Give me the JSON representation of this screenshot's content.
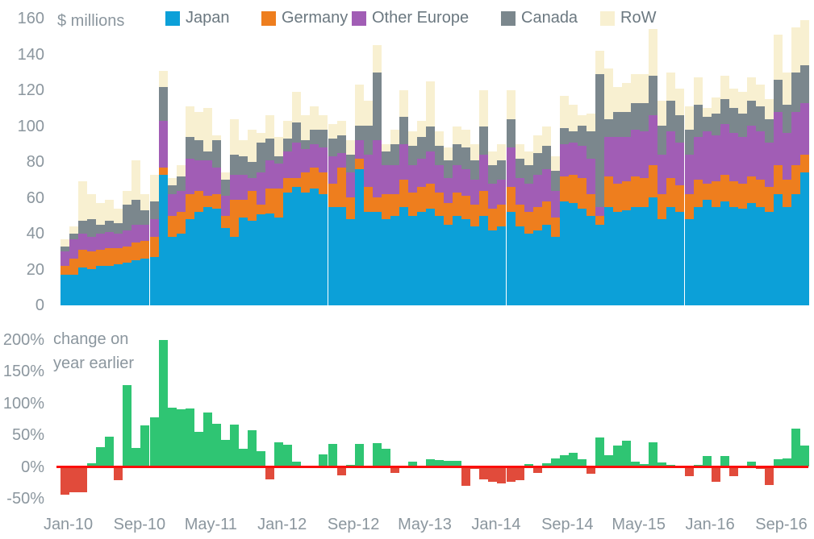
{
  "colors": {
    "japan": "#0ca0d8",
    "germany": "#ee7e1e",
    "other_europe": "#a15db5",
    "canada": "#7b878d",
    "row": "#f8f0d1",
    "positive": "#2fc573",
    "negative": "#e14b3b",
    "zero_line": "#fb0f0c",
    "axis_text": "#8b969e"
  },
  "legend": {
    "items": [
      {
        "label": "Japan",
        "color": "#0ca0d8"
      },
      {
        "label": "Germany",
        "color": "#ee7e1e"
      },
      {
        "label": "Other Europe",
        "color": "#a15db5"
      },
      {
        "label": "Canada",
        "color": "#7b878d"
      },
      {
        "label": "RoW",
        "color": "#f8f0d1"
      }
    ]
  },
  "chart_data": [
    {
      "type": "bar",
      "stacked": true,
      "title": "$ millions",
      "ylabel": "",
      "ylim": [
        0,
        160
      ],
      "yticks": [
        160,
        140,
        120,
        100,
        80,
        60,
        40,
        20,
        0
      ],
      "grid": false,
      "legend_position": "top",
      "categories": [
        "Jan-10",
        "Feb-10",
        "Mar-10",
        "Apr-10",
        "May-10",
        "Jun-10",
        "Jul-10",
        "Aug-10",
        "Sep-10",
        "Oct-10",
        "Nov-10",
        "Dec-10",
        "Jan-11",
        "Feb-11",
        "Mar-11",
        "Apr-11",
        "May-11",
        "Jun-11",
        "Jul-11",
        "Aug-11",
        "Sep-11",
        "Oct-11",
        "Nov-11",
        "Dec-11",
        "Jan-12",
        "Feb-12",
        "Mar-12",
        "Apr-12",
        "May-12",
        "Jun-12",
        "Jul-12",
        "Aug-12",
        "Sep-12",
        "Oct-12",
        "Nov-12",
        "Dec-12",
        "Jan-13",
        "Feb-13",
        "Mar-13",
        "Apr-13",
        "May-13",
        "Jun-13",
        "Jul-13",
        "Aug-13",
        "Sep-13",
        "Oct-13",
        "Nov-13",
        "Dec-13",
        "Jan-14",
        "Feb-14",
        "Mar-14",
        "Apr-14",
        "May-14",
        "Jun-14",
        "Jul-14",
        "Aug-14",
        "Sep-14",
        "Oct-14",
        "Nov-14",
        "Dec-14",
        "Jan-15",
        "Feb-15",
        "Mar-15",
        "Apr-15",
        "May-15",
        "Jun-15",
        "Jul-15",
        "Aug-15",
        "Sep-15",
        "Oct-15",
        "Nov-15",
        "Dec-15",
        "Jan-16",
        "Feb-16",
        "Mar-16",
        "Apr-16",
        "May-16",
        "Jun-16",
        "Jul-16",
        "Aug-16",
        "Sep-16",
        "Oct-16",
        "Nov-16",
        "Dec-16"
      ],
      "xtick_labels": [
        "Jan-10",
        "Sep-10",
        "May-11",
        "Jan-12",
        "Sep-12",
        "May-13",
        "Jan-14",
        "Sep-14",
        "May-15",
        "Jan-16",
        "Sep-16"
      ],
      "xtick_indices": [
        0,
        8,
        16,
        24,
        32,
        40,
        48,
        56,
        64,
        72,
        80
      ],
      "series": [
        {
          "name": "Japan",
          "values": [
            17,
            17,
            21,
            20,
            22,
            22,
            23,
            24,
            25,
            26,
            27,
            73,
            38,
            40,
            48,
            52,
            55,
            54,
            43,
            38,
            49,
            47,
            51,
            51,
            49,
            63,
            66,
            63,
            65,
            62,
            55,
            55,
            48,
            76,
            52,
            52,
            48,
            50,
            55,
            50,
            52,
            54,
            50,
            45,
            50,
            48,
            44,
            50,
            42,
            44,
            52,
            44,
            40,
            42,
            45,
            38,
            58,
            57,
            54,
            50,
            45,
            55,
            52,
            53,
            55,
            55,
            60,
            48,
            55,
            52,
            48,
            55,
            59,
            55,
            58,
            55,
            54,
            57,
            55,
            52,
            62,
            55,
            62,
            74
          ]
        },
        {
          "name": "Germany",
          "values": [
            5,
            9,
            10,
            10,
            9,
            10,
            9,
            9,
            10,
            10,
            11,
            4,
            12,
            12,
            14,
            12,
            6,
            8,
            7,
            21,
            10,
            17,
            5,
            14,
            16,
            8,
            5,
            11,
            12,
            12,
            13,
            22,
            12,
            6,
            14,
            8,
            14,
            12,
            15,
            13,
            14,
            14,
            13,
            12,
            13,
            13,
            12,
            14,
            12,
            12,
            14,
            12,
            12,
            13,
            13,
            11,
            14,
            16,
            17,
            12,
            5,
            17,
            16,
            16,
            17,
            16,
            18,
            14,
            16,
            15,
            14,
            15,
            9,
            14,
            15,
            14,
            14,
            15,
            15,
            14,
            16,
            15,
            16,
            10
          ]
        },
        {
          "name": "Other Europe",
          "values": [
            8,
            11,
            9,
            8,
            9,
            9,
            8,
            9,
            10,
            9,
            10,
            26,
            12,
            12,
            20,
            17,
            20,
            15,
            11,
            14,
            14,
            7,
            18,
            16,
            14,
            15,
            20,
            13,
            13,
            14,
            15,
            8,
            14,
            10,
            18,
            32,
            16,
            16,
            20,
            15,
            16,
            18,
            15,
            14,
            15,
            15,
            14,
            20,
            14,
            14,
            22,
            15,
            16,
            18,
            18,
            15,
            18,
            18,
            18,
            20,
            5,
            22,
            26,
            25,
            26,
            26,
            28,
            22,
            26,
            24,
            22,
            24,
            29,
            26,
            28,
            27,
            26,
            28,
            27,
            25,
            30,
            26,
            30,
            29
          ]
        },
        {
          "name": "Canada",
          "values": [
            3,
            3,
            7,
            10,
            5,
            6,
            6,
            14,
            14,
            8,
            10,
            19,
            5,
            8,
            12,
            11,
            5,
            15,
            9,
            11,
            10,
            9,
            17,
            12,
            4,
            7,
            11,
            5,
            8,
            10,
            10,
            10,
            10,
            8,
            16,
            38,
            8,
            12,
            15,
            11,
            12,
            14,
            11,
            10,
            12,
            12,
            11,
            16,
            10,
            11,
            16,
            11,
            10,
            12,
            13,
            11,
            9,
            6,
            11,
            15,
            74,
            10,
            14,
            14,
            15,
            16,
            22,
            16,
            17,
            15,
            14,
            18,
            8,
            12,
            14,
            14,
            13,
            14,
            14,
            13,
            18,
            16,
            22,
            21
          ]
        },
        {
          "name": "RoW",
          "values": [
            4,
            4,
            22,
            14,
            12,
            12,
            8,
            8,
            22,
            9,
            15,
            9,
            4,
            6,
            17,
            16,
            24,
            3,
            4,
            20,
            9,
            18,
            5,
            13,
            11,
            10,
            17,
            14,
            13,
            8,
            8,
            8,
            8,
            23,
            14,
            15,
            4,
            8,
            15,
            8,
            9,
            25,
            8,
            7,
            10,
            10,
            9,
            20,
            8,
            9,
            16,
            8,
            8,
            10,
            11,
            8,
            18,
            15,
            6,
            10,
            13,
            28,
            14,
            16,
            16,
            16,
            26,
            14,
            16,
            15,
            13,
            15,
            5,
            9,
            13,
            11,
            12,
            13,
            12,
            11,
            25,
            18,
            25,
            25
          ]
        }
      ]
    },
    {
      "type": "bar",
      "title": "change on\nyear earlier",
      "ylim": [
        -50,
        200
      ],
      "yticks_pct": [
        "200%",
        "150%",
        "100%",
        "50%",
        "0%",
        "-50%"
      ],
      "ytick_values": [
        200,
        150,
        100,
        50,
        0,
        -50
      ],
      "grid": false,
      "zero_line_color": "#fb0f0c",
      "values_pct": [
        -44,
        -40,
        -40,
        6,
        31,
        48,
        -21,
        128,
        30,
        65,
        78,
        200,
        93,
        90,
        92,
        55,
        85,
        68,
        42,
        67,
        28,
        58,
        25,
        -20,
        38,
        35,
        8,
        2,
        0,
        19,
        36,
        -13,
        3,
        36,
        1,
        37,
        28,
        -10,
        0,
        8,
        0,
        12,
        11,
        10,
        9,
        -30,
        -3,
        -20,
        -23,
        -26,
        -24,
        -21,
        4,
        -9,
        6,
        13,
        18,
        22,
        12,
        -11,
        46,
        18,
        33,
        41,
        8,
        5,
        39,
        7,
        3,
        0,
        -14,
        3,
        17,
        -24,
        17,
        -14,
        0,
        8,
        -3,
        -28,
        12,
        13,
        60,
        34
      ]
    }
  ]
}
